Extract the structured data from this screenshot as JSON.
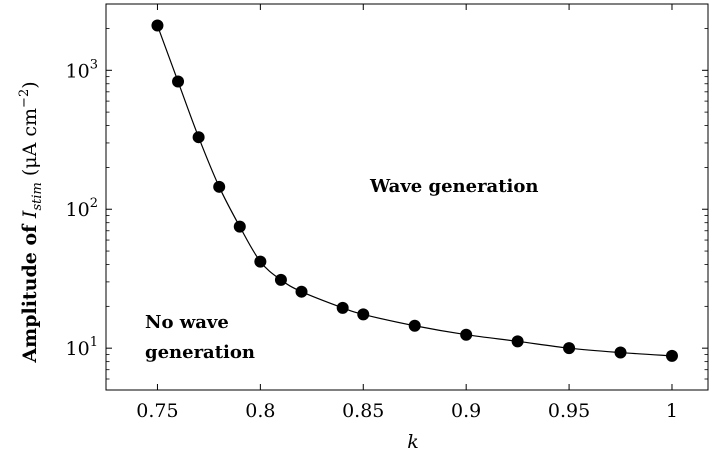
{
  "chart_data": {
    "type": "line",
    "title": "",
    "xlabel": "k",
    "ylabel": {
      "prefix": "Amplitude of ",
      "var": "I",
      "sub": "stim",
      "unit_open": " (μA cm",
      "unit_sup": "−2",
      "unit_close": ")"
    },
    "xlim": [
      0.725,
      1.0175
    ],
    "ylim": [
      5,
      3000
    ],
    "yscale": "log",
    "grid": false,
    "x_ticks": [
      0.75,
      0.8,
      0.85,
      0.9,
      0.95,
      1.0
    ],
    "x_tick_labels": [
      "0.75",
      "0.8",
      "0.85",
      "0.9",
      "0.95",
      "1"
    ],
    "y_ticks": [
      10,
      100,
      1000
    ],
    "y_tick_labels": [
      {
        "base": "10",
        "exp": "1"
      },
      {
        "base": "10",
        "exp": "2"
      },
      {
        "base": "10",
        "exp": "3"
      }
    ],
    "series": [
      {
        "marker": "circle",
        "color": "#000000",
        "x": [
          0.75,
          0.76,
          0.77,
          0.78,
          0.79,
          0.8,
          0.81,
          0.82,
          0.84,
          0.85,
          0.875,
          0.9,
          0.925,
          0.95,
          0.975,
          1.0
        ],
        "y": [
          2100,
          830,
          330,
          145,
          75,
          42,
          31,
          25.5,
          19.5,
          17.5,
          14.5,
          12.5,
          11.2,
          10.0,
          9.3,
          8.8
        ]
      }
    ],
    "annotations": {
      "wave": "Wave generation",
      "nowave_line1": "No wave",
      "nowave_line2": "generation"
    }
  }
}
